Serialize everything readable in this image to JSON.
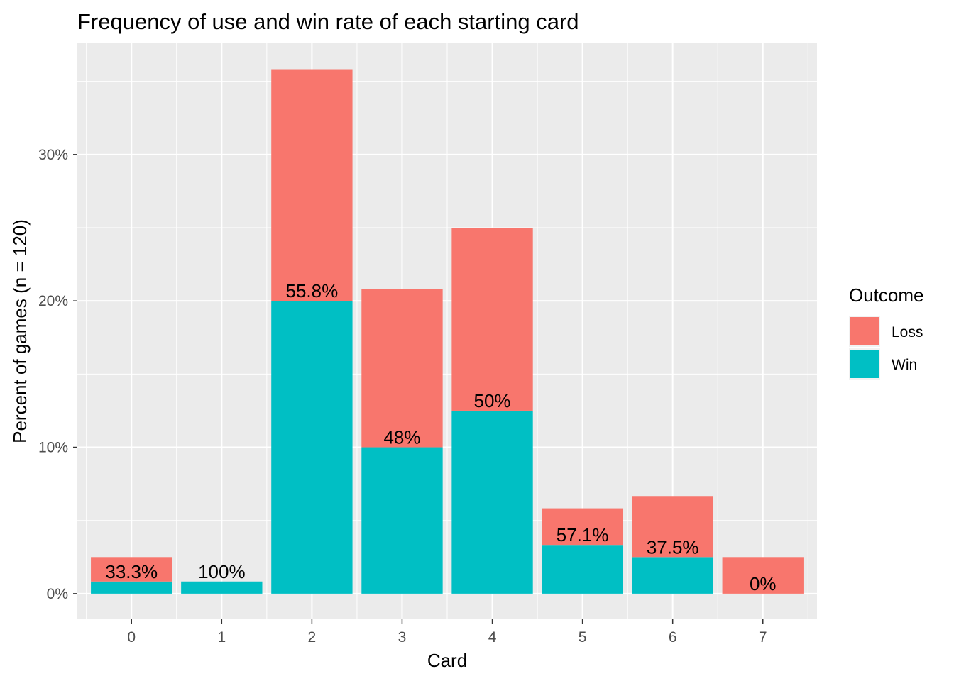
{
  "chart_data": {
    "type": "bar",
    "stacked": true,
    "title": "Frequency of use and win rate of each starting card",
    "xlabel": "Card",
    "ylabel": "Percent of games (n = 120)",
    "categories": [
      "0",
      "1",
      "2",
      "3",
      "4",
      "5",
      "6",
      "7"
    ],
    "series": [
      {
        "name": "Loss",
        "color": "#F8766D",
        "values": [
          1.67,
          0,
          15.83,
          10.83,
          12.5,
          2.5,
          4.17,
          2.5
        ]
      },
      {
        "name": "Win",
        "color": "#00BFC4",
        "values": [
          0.83,
          0.83,
          20.0,
          10.0,
          12.5,
          3.33,
          2.5,
          0
        ]
      }
    ],
    "bar_labels": [
      "33.3%",
      "100%",
      "55.8%",
      "48%",
      "50%",
      "57.1%",
      "37.5%",
      "0%"
    ],
    "yticks": [
      0,
      10,
      20,
      30
    ],
    "ytick_labels": [
      "0%",
      "10%",
      "20%",
      "30%"
    ],
    "ylim": [
      -1.75,
      37.6
    ],
    "grid": true,
    "legend": {
      "title": "Outcome",
      "position": "right",
      "entries": [
        "Loss",
        "Win"
      ]
    }
  }
}
